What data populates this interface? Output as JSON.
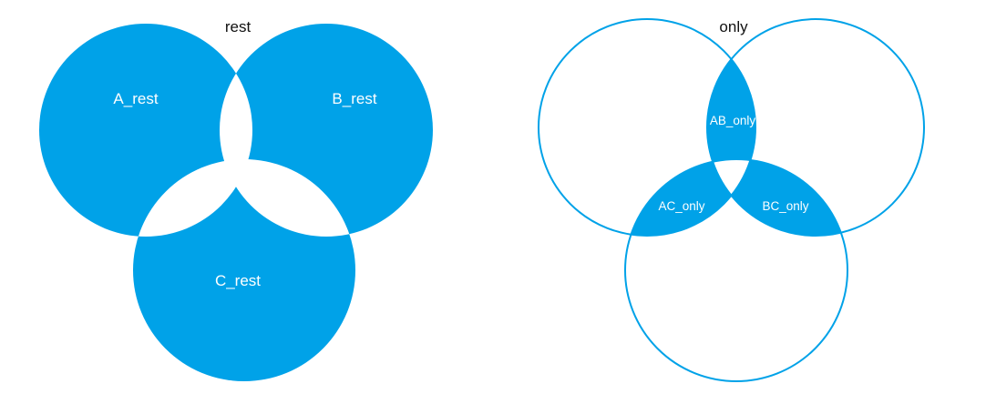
{
  "colors": {
    "fill": "#00a2e8",
    "background": "#ffffff",
    "title": "#111111",
    "label": "#ffffff"
  },
  "left_diagram": {
    "title": "rest",
    "labels": {
      "a": "A_rest",
      "b": "B_rest",
      "c": "C_rest"
    }
  },
  "right_diagram": {
    "title": "only",
    "labels": {
      "ab": "AB_only",
      "ac": "AC_only",
      "bc": "BC_only"
    }
  }
}
